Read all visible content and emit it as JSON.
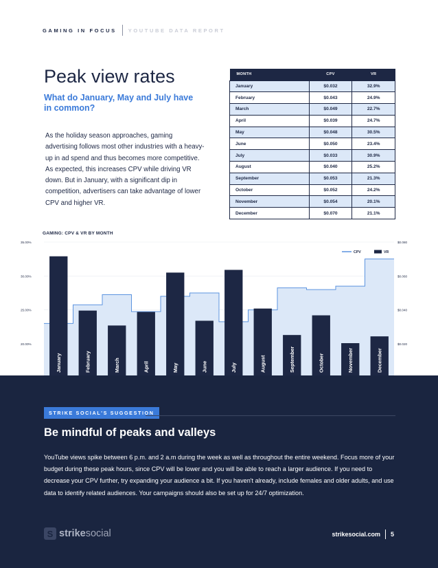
{
  "header": {
    "left": "GAMING IN FOCUS",
    "right": "YOUTUBE DATA REPORT"
  },
  "title": "Peak view rates",
  "subtitle": "What do January, May and July have in common?",
  "body": "As the holiday season approaches, gaming advertising follows most other industries with a heavy-up in ad spend and thus becomes more competitive. As expected, this increases CPV while driving VR down. But in January, with a significant dip in competition, advertisers can take advantage of lower CPV and higher VR.",
  "table": {
    "headers": [
      "MONTH",
      "CPV",
      "VR"
    ],
    "rows": [
      [
        "January",
        "$0.032",
        "32.9%"
      ],
      [
        "February",
        "$0.043",
        "24.9%"
      ],
      [
        "March",
        "$0.049",
        "22.7%"
      ],
      [
        "April",
        "$0.039",
        "24.7%"
      ],
      [
        "May",
        "$0.048",
        "30.5%"
      ],
      [
        "June",
        "$0.050",
        "23.4%"
      ],
      [
        "July",
        "$0.033",
        "30.9%"
      ],
      [
        "August",
        "$0.040",
        "25.2%"
      ],
      [
        "September",
        "$0.053",
        "21.3%"
      ],
      [
        "October",
        "$0.052",
        "24.2%"
      ],
      [
        "November",
        "$0.054",
        "20.1%"
      ],
      [
        "December",
        "$0.070",
        "21.1%"
      ]
    ]
  },
  "chart_data": {
    "type": "bar",
    "title": "GAMING: CPV & VR BY MONTH",
    "categories": [
      "January",
      "February",
      "March",
      "April",
      "May",
      "June",
      "July",
      "August",
      "September",
      "October",
      "November",
      "December"
    ],
    "series": [
      {
        "name": "VR",
        "type": "bar",
        "axis": "left",
        "values": [
          32.9,
          24.9,
          22.7,
          24.7,
          30.5,
          23.4,
          30.9,
          25.2,
          21.3,
          24.2,
          20.1,
          21.1
        ]
      },
      {
        "name": "CPV",
        "type": "step-area",
        "axis": "right",
        "values": [
          0.032,
          0.043,
          0.049,
          0.039,
          0.048,
          0.05,
          0.033,
          0.04,
          0.053,
          0.052,
          0.054,
          0.07
        ]
      }
    ],
    "left_ticks": [
      "35.00%",
      "30.00%",
      "25.00%",
      "20.00%"
    ],
    "right_ticks": [
      "$0.080",
      "$0.060",
      "$0.040",
      "$0.020"
    ],
    "left_axis": {
      "min": 15,
      "max": 35
    },
    "right_axis": {
      "min": 0,
      "max": 0.08
    },
    "legend": [
      "CPV",
      "VR"
    ],
    "legend_position": "top-right",
    "colors": {
      "bar": "#1d2744",
      "area_fill": "#dce8f8",
      "area_line": "#5b93df"
    }
  },
  "suggestion": {
    "badge": "STRIKE SOCIAL'S SUGGESTION",
    "headline": "Be mindful of peaks and valleys",
    "body": "YouTube views spike between 6 p.m. and 2 a.m during the week as well as throughout the entire weekend. Focus more of your budget during these peak hours, since CPV will be lower and you will be able to reach a larger audience. If you need to decrease your CPV further, try expanding your audience a bit. If you haven't already, include females and older adults, and use data to identify related audiences. Your campaigns should also be set up for 24/7 optimization."
  },
  "footer": {
    "logo_icon": "S",
    "logo_bold": "strike",
    "logo_rest": "social",
    "site": "strikesocial.com",
    "page": "5"
  }
}
